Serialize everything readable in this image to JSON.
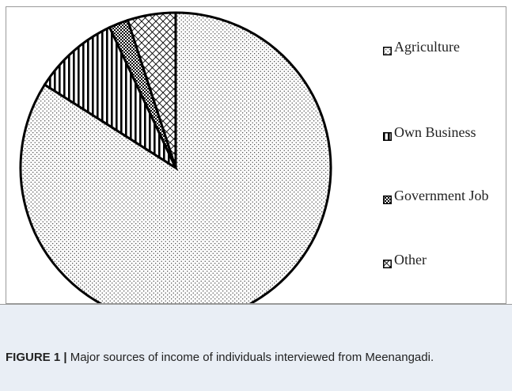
{
  "chart_data": {
    "type": "pie",
    "title": "",
    "slices": [
      {
        "label": "Agriculture",
        "value": 84,
        "pattern": "dots"
      },
      {
        "label": "Own Business",
        "value": 9,
        "pattern": "vertical-stripes"
      },
      {
        "label": "Government Job",
        "value": 2,
        "pattern": "checker"
      },
      {
        "label": "Other",
        "value": 5,
        "pattern": "crosshatch"
      }
    ],
    "start_angle_deg": 0,
    "direction": "clockwise",
    "legend_position": "right"
  },
  "legend": [
    {
      "label": "Agriculture"
    },
    {
      "label": "Own Business"
    },
    {
      "label": "Government Job"
    },
    {
      "label": "Other"
    }
  ],
  "caption": {
    "label": "FIGURE 1 |",
    "text": "Major sources of income of individuals interviewed from Meenangadi."
  }
}
